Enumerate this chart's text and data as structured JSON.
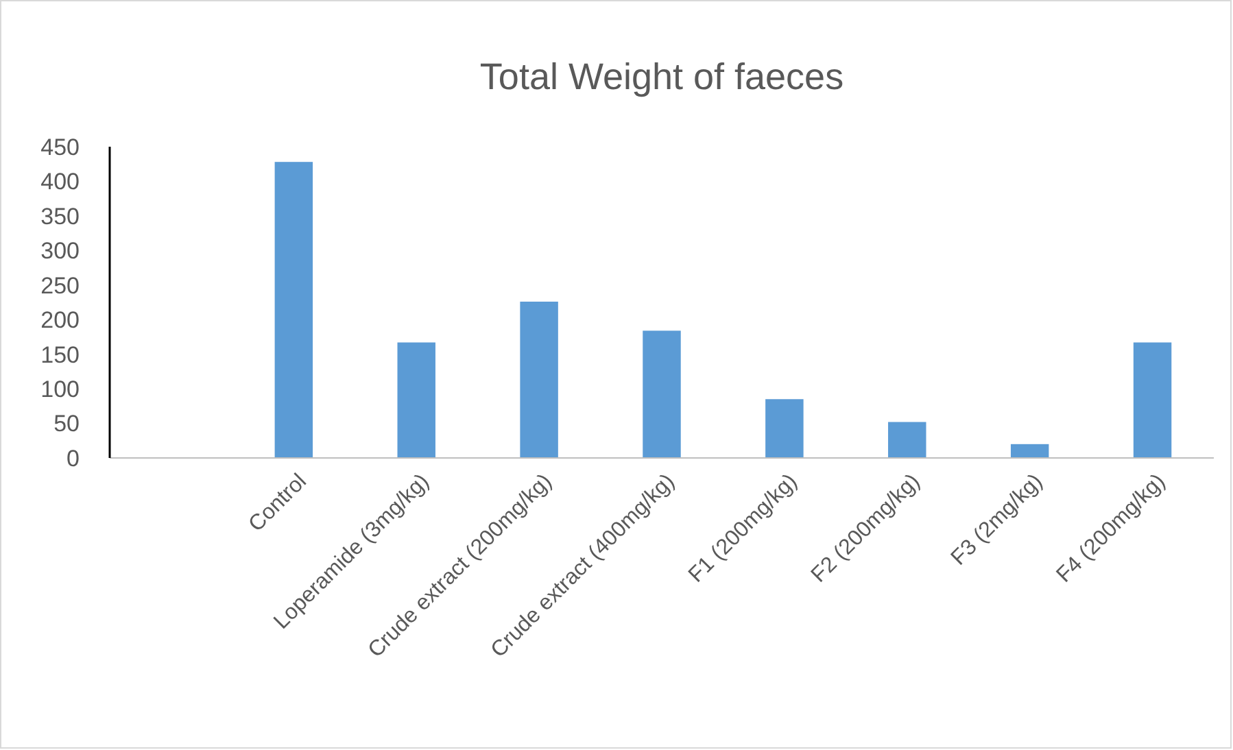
{
  "chart_data": {
    "type": "bar",
    "title": "Total Weight of faeces",
    "categories": [
      null,
      "Control",
      "Loperamide (3mg/kg)",
      "Crude extract (200mg/kg)",
      "Crude extract (400mg/kg)",
      "F1 (200mg/kg)",
      "F2 (200mg/kg)",
      "F3 (2mg/kg)",
      "F4 (200mg/kg)"
    ],
    "values": [
      null,
      428,
      167,
      226,
      184,
      85,
      52,
      20,
      167
    ],
    "color": "#5b9bd5",
    "ylim": [
      0,
      450
    ],
    "yticks": [
      0,
      50,
      100,
      150,
      200,
      250,
      300,
      350,
      400,
      450
    ]
  }
}
